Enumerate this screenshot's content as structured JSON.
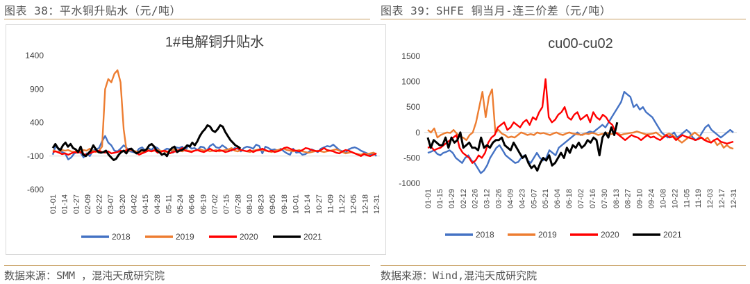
{
  "left": {
    "heading": "图表 38：平水铜升贴水（元/吨）",
    "source": "数据来源：SMM ，混沌天成研究院",
    "chart": {
      "type": "line",
      "title": "1#电解铜升贴水",
      "yticks": [
        -600,
        -100,
        400,
        900,
        1400
      ],
      "ylim": [
        -600,
        1400
      ],
      "x": [
        "01-01",
        "01-14",
        "01-27",
        "02-09",
        "02-22",
        "03-07",
        "03-20",
        "04-02",
        "04-15",
        "04-28",
        "05-11",
        "05-24",
        "06-06",
        "06-19",
        "07-02",
        "07-15",
        "07-28",
        "08-10",
        "08-23",
        "09-05",
        "09-18",
        "10-01",
        "10-14",
        "10-27",
        "11-09",
        "11-22",
        "12-05",
        "12-18",
        "12-31"
      ],
      "series": [
        {
          "name": "2018",
          "color": "#4472c4",
          "width": 2.4,
          "values": [
            -80,
            60,
            -10,
            -40,
            -60,
            -150,
            -120,
            -60,
            -40,
            -50,
            -120,
            -60,
            -100,
            -20,
            0,
            20,
            120,
            200,
            100,
            60,
            -20,
            -30,
            10,
            60,
            20,
            -30,
            -40,
            -50,
            10,
            30,
            -20,
            20,
            -10,
            40,
            20,
            -30,
            -20,
            10,
            0,
            -50,
            30,
            20,
            40,
            -20,
            60,
            10,
            20,
            -10,
            40,
            30,
            -20,
            50,
            80,
            30,
            20,
            60,
            30,
            -10,
            -20,
            20,
            10,
            -30,
            20,
            40,
            30,
            10,
            70,
            50,
            -60,
            40,
            20,
            -10,
            0,
            -20,
            10,
            -30,
            -60,
            -80,
            10,
            -50,
            -40,
            -80,
            -70,
            -40,
            0,
            -20,
            -40,
            10,
            30,
            50,
            40,
            70,
            30,
            -10,
            -30,
            -50,
            0,
            20,
            30,
            10,
            -20,
            -40,
            -60,
            -80,
            -50,
            -100
          ]
        },
        {
          "name": "2019",
          "color": "#ed7d31",
          "width": 2.4,
          "values": [
            -10,
            -30,
            -40,
            -10,
            -20,
            -10,
            -30,
            -40,
            -20,
            -30,
            -10,
            -20,
            10,
            -20,
            -40,
            -20,
            40,
            900,
            1050,
            1000,
            1130,
            1180,
            1000,
            300,
            -40,
            -10,
            -20,
            -30,
            -40,
            -50,
            -20,
            -10,
            -30,
            -20,
            -10,
            -20,
            -30,
            -40,
            -20,
            -10,
            0,
            -20,
            -30,
            -10,
            -20,
            -30,
            -20,
            -10,
            0,
            -20,
            -10,
            -30,
            -20,
            -10,
            -30,
            -20,
            -10,
            0,
            20,
            -20,
            -30,
            -10,
            -20,
            -30,
            -40,
            -20,
            -10,
            0,
            -10,
            -20,
            -30,
            -40,
            -20,
            -10,
            0,
            10,
            -10,
            -20,
            -30,
            -20,
            -10,
            -30,
            -40,
            -50,
            -40,
            -30,
            -20,
            -30,
            -40,
            -30,
            -20,
            -10,
            0,
            -20,
            -40,
            -60,
            -50,
            -40,
            -60,
            -70,
            -80,
            -60,
            -70,
            -60,
            -50,
            -70
          ]
        },
        {
          "name": "2020",
          "color": "#ff0000",
          "width": 2.4,
          "values": [
            -40,
            -30,
            -50,
            -70,
            -60,
            -80,
            -60,
            -40,
            -50,
            -40,
            -70,
            -80,
            -60,
            -40,
            -30,
            -20,
            -40,
            -50,
            -30,
            -60,
            -50,
            -40,
            -20,
            -30,
            -10,
            10,
            -20,
            -50,
            -80,
            -60,
            -40,
            -20,
            -30,
            -10,
            -50,
            -40,
            -20,
            -30,
            -60,
            -40,
            -30,
            -10,
            20,
            -20,
            -30,
            -40,
            -20,
            -10,
            -30,
            -40,
            -20,
            10,
            -20,
            -30,
            -10,
            -20,
            -40,
            -30,
            -10,
            0,
            20,
            -10,
            -20,
            -30,
            -10,
            -40,
            -20,
            -10,
            10,
            -10,
            -30,
            -20,
            -40,
            -30,
            -10,
            20,
            30,
            10,
            -10,
            -20,
            -30,
            -10,
            20,
            10,
            -10,
            -20,
            -30,
            -10,
            20,
            -10,
            -20,
            -30,
            -50,
            -60,
            -30,
            -10,
            -20,
            -40,
            -60,
            -80,
            -100,
            -70,
            -90,
            -100,
            -80,
            -60
          ]
        },
        {
          "name": "2021",
          "color": "#000000",
          "width": 3.0,
          "values": [
            20,
            80,
            20,
            -10,
            60,
            100,
            40,
            80,
            20,
            0,
            -40,
            40,
            -80,
            -100,
            -60,
            -20,
            60,
            0,
            -40,
            -50,
            -40,
            -20,
            -80,
            -120,
            -160,
            -140,
            -80,
            -40,
            -20,
            -60,
            0,
            10,
            -30,
            -60,
            -40,
            -10,
            -20,
            0,
            60,
            80,
            40,
            -20,
            -40,
            -80,
            -60,
            -100,
            -20,
            20,
            40,
            -40,
            -20,
            -10,
            20,
            60,
            40,
            100,
            60,
            120,
            200,
            260,
            300,
            360,
            340,
            280,
            260,
            300,
            360,
            340,
            260,
            200,
            140,
            100,
            60,
            40,
            10
          ]
        }
      ]
    }
  },
  "right": {
    "heading": "图表 39：SHFE 铜当月-连三价差（元/吨）",
    "source": "数据来源：Wind,混沌天成研究院",
    "chart": {
      "type": "line",
      "title": "cu00-cu02",
      "yticks": [
        -1000,
        -500,
        0,
        500,
        1000,
        1500
      ],
      "ylim": [
        -1000,
        1500
      ],
      "x": [
        "01-01",
        "01-15",
        "01-29",
        "02-12",
        "02-26",
        "03-12",
        "03-26",
        "04-09",
        "04-23",
        "05-07",
        "05-21",
        "06-04",
        "06-18",
        "07-02",
        "07-16",
        "07-30",
        "08-13",
        "08-27",
        "09-10",
        "09-24",
        "10-08",
        "10-22",
        "11-05",
        "11-19",
        "12-03",
        "12-17",
        "12-31"
      ],
      "series": [
        {
          "name": "2018",
          "color": "#4472c4",
          "width": 2.4,
          "values": [
            -400,
            -380,
            -350,
            -420,
            -450,
            -400,
            -380,
            -350,
            -400,
            -500,
            -550,
            -600,
            -500,
            -450,
            -550,
            -600,
            -700,
            -800,
            -750,
            -650,
            -500,
            -400,
            -300,
            -250,
            -350,
            -450,
            -500,
            -550,
            -600,
            -580,
            -500,
            -450,
            -550,
            -600,
            -500,
            -400,
            -500,
            -550,
            -500,
            -350,
            -400,
            -450,
            -300,
            -250,
            -200,
            -150,
            -100,
            -50,
            0,
            -50,
            -30,
            -10,
            20,
            0,
            50,
            100,
            150,
            100,
            200,
            300,
            400,
            500,
            600,
            800,
            750,
            700,
            500,
            550,
            450,
            500,
            400,
            350,
            300,
            200,
            100,
            0,
            -50,
            -100,
            -50,
            0,
            -100,
            -50,
            0,
            50,
            0,
            -100,
            -150,
            -100,
            0,
            100,
            150,
            50,
            0,
            -50,
            -100,
            -50,
            0,
            50,
            0
          ]
        },
        {
          "name": "2019",
          "color": "#ed7d31",
          "width": 2.4,
          "values": [
            50,
            0,
            80,
            -100,
            -50,
            -20,
            0,
            -10,
            50,
            -20,
            -80,
            -100,
            -150,
            -50,
            0,
            200,
            500,
            800,
            300,
            700,
            850,
            0,
            50,
            -20,
            -50,
            -100,
            -80,
            -100,
            -50,
            0,
            -20,
            -50,
            -30,
            -50,
            0,
            -20,
            -10,
            -30,
            -50,
            -20,
            0,
            -30,
            -50,
            -20,
            0,
            -20,
            -30,
            -40,
            -50,
            -20,
            -30,
            -10,
            -20,
            -50,
            -30,
            -20,
            -10,
            -30,
            -20,
            -10,
            -50,
            -30,
            -20,
            -10,
            0,
            20,
            0,
            -20,
            -40,
            -30,
            -20,
            0,
            -50,
            -100,
            -50,
            -20,
            -50,
            -100,
            -150,
            -200,
            -150,
            -100,
            -50,
            0,
            -50,
            -100,
            -150,
            -100,
            -200,
            -150,
            -250,
            -200,
            -300,
            -250,
            -300,
            -320
          ]
        },
        {
          "name": "2020",
          "color": "#ff0000",
          "width": 2.4,
          "values": [
            -300,
            -280,
            -350,
            -320,
            -300,
            -250,
            -200,
            -150,
            -100,
            -50,
            -300,
            -400,
            -450,
            -500,
            -600,
            -550,
            -450,
            -500,
            -400,
            -200,
            -100,
            -50,
            100,
            150,
            200,
            50,
            100,
            200,
            150,
            100,
            200,
            250,
            150,
            300,
            250,
            400,
            500,
            1050,
            300,
            200,
            250,
            350,
            400,
            500,
            300,
            250,
            350,
            400,
            250,
            300,
            350,
            200,
            400,
            300,
            250,
            350,
            300,
            200,
            150,
            0,
            -50,
            -100,
            -150,
            -100,
            -50,
            -80,
            -100,
            -150,
            -100,
            -50,
            -100,
            -80,
            -120,
            -150,
            -100,
            -50,
            -100,
            -80,
            -150,
            -100,
            -50,
            -80,
            -100,
            -120,
            -150,
            -130,
            -100,
            -150,
            -180,
            -200,
            -150,
            -120,
            -180,
            -200,
            -220,
            -200,
            -180
          ]
        },
        {
          "name": "2021",
          "color": "#000000",
          "width": 3.0,
          "values": [
            -100,
            -300,
            -150,
            -200,
            -250,
            -250,
            -100,
            -300,
            -100,
            -200,
            -150,
            0,
            -300,
            -250,
            -200,
            -300,
            -300,
            -350,
            -100,
            -300,
            -250,
            -300,
            -200,
            -150,
            -150,
            -100,
            -250,
            -300,
            -350,
            -200,
            -300,
            -400,
            -500,
            -450,
            -600,
            -700,
            -650,
            -750,
            -600,
            -500,
            -550,
            -450,
            -650,
            -600,
            -500,
            -400,
            -500,
            -300,
            -400,
            -250,
            -300,
            -200,
            -300,
            -250,
            -150,
            -200,
            -100,
            -150,
            -450,
            -100,
            0,
            -100,
            100,
            -50,
            200
          ]
        }
      ]
    }
  }
}
